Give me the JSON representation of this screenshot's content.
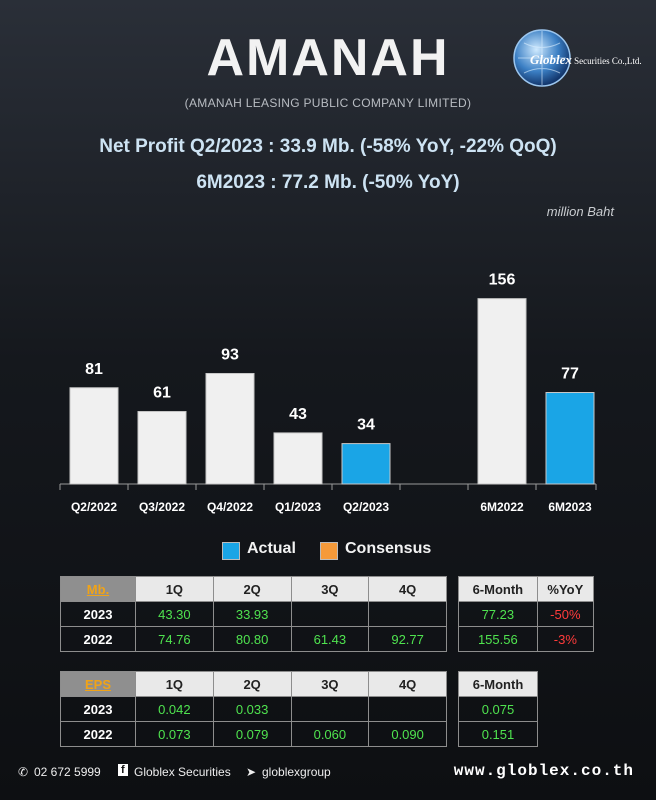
{
  "header": {
    "title": "AMANAH",
    "subtitle": "(AMANAH LEASING PUBLIC COMPANY LIMITED)",
    "logo_brand": "Globlex",
    "logo_suffix": "Securities Co.,Ltd."
  },
  "headline": {
    "line1": "Net Profit  Q2/2023 : 33.9 Mb. (-58% YoY, -22% QoQ)",
    "line2": "6M2023 : 77.2 Mb. (-50% YoY)"
  },
  "unit_label": "million Baht",
  "chart_data": {
    "type": "bar",
    "categories": [
      "Q2/2022",
      "Q3/2022",
      "Q4/2022",
      "Q1/2023",
      "Q2/2023",
      "",
      "6M2022",
      "6M2023"
    ],
    "values": [
      81,
      61,
      93,
      43,
      34,
      null,
      156,
      77
    ],
    "data_labels": [
      "81",
      "61",
      "93",
      "43",
      "34",
      "",
      "156",
      "77"
    ],
    "highlight": [
      false,
      false,
      false,
      false,
      true,
      false,
      false,
      true
    ],
    "colors": {
      "default": "#f0f0f0",
      "actual": "#1aa5e6",
      "consensus": "#f59a3a"
    },
    "legend": [
      "Actual",
      "Consensus"
    ],
    "ylim": [
      0,
      170
    ]
  },
  "legend": {
    "actual": "Actual",
    "consensus": "Consensus"
  },
  "profit_table": {
    "key": "Mb.",
    "headers": [
      "1Q",
      "2Q",
      "3Q",
      "4Q"
    ],
    "rows": [
      {
        "year": "2023",
        "values": [
          "43.30",
          "33.93",
          "",
          ""
        ]
      },
      {
        "year": "2022",
        "values": [
          "74.76",
          "80.80",
          "61.43",
          "92.77"
        ]
      }
    ]
  },
  "profit_6m_table": {
    "headers": [
      "6-Month",
      "%YoY"
    ],
    "rows": [
      {
        "values": [
          "77.23",
          "-50%"
        ]
      },
      {
        "values": [
          "155.56",
          "-3%"
        ]
      }
    ]
  },
  "eps_table": {
    "key": "EPS",
    "headers": [
      "1Q",
      "2Q",
      "3Q",
      "4Q"
    ],
    "rows": [
      {
        "year": "2023",
        "values": [
          "0.042",
          "0.033",
          "",
          ""
        ]
      },
      {
        "year": "2022",
        "values": [
          "0.073",
          "0.079",
          "0.060",
          "0.090"
        ]
      }
    ]
  },
  "eps_6m_table": {
    "headers": [
      "6-Month"
    ],
    "rows": [
      {
        "values": [
          "0.075"
        ]
      },
      {
        "values": [
          "0.151"
        ]
      }
    ]
  },
  "footer": {
    "phone": "02 672 5999",
    "facebook": "Globlex Securities",
    "telegram": "globlexgroup",
    "url": "www.globlex.co.th"
  }
}
